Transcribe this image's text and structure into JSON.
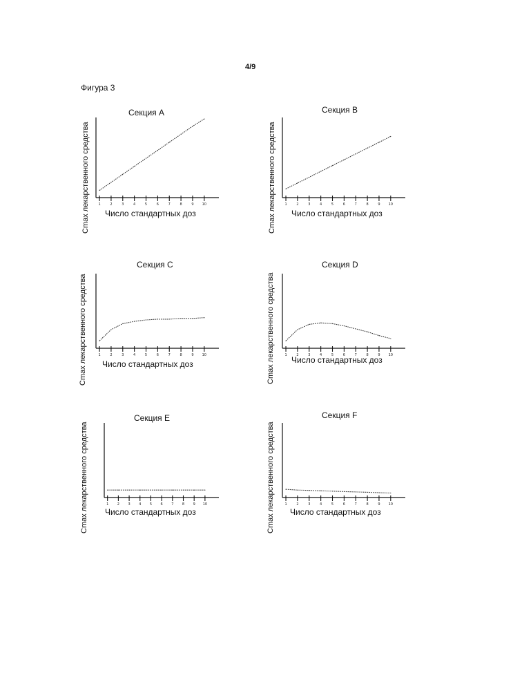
{
  "page": {
    "number": "4/9",
    "figure_label": "Фигура 3"
  },
  "chart_data": [
    {
      "type": "line",
      "title": "Секция A",
      "xlabel": "Число стандартных доз",
      "ylabel": "Cmax лекарственного средства",
      "x": [
        1,
        2,
        3,
        4,
        5,
        6,
        7,
        8,
        9,
        10
      ],
      "x_tick_labels": [
        "1",
        "2",
        "3",
        "4",
        "5",
        "6",
        "7",
        "8",
        "9",
        "10"
      ],
      "series": [
        {
          "name": "Cmax",
          "values": [
            0.1,
            0.21,
            0.32,
            0.43,
            0.54,
            0.65,
            0.76,
            0.87,
            0.98,
            1.08
          ]
        }
      ],
      "xlim": [
        0.7,
        10.9
      ],
      "ylim": [
        0,
        1.1
      ]
    },
    {
      "type": "line",
      "title": "Секция B",
      "xlabel": "Число стандартных доз",
      "ylabel": "Cmax лекарственного средства",
      "x": [
        1,
        2,
        3,
        4,
        5,
        6,
        7,
        8,
        9,
        10
      ],
      "x_tick_labels": [
        "1",
        "2",
        "3",
        "4",
        "5",
        "6",
        "7",
        "8",
        "9",
        "10"
      ],
      "series": [
        {
          "name": "Cmax",
          "values": [
            0.12,
            0.2,
            0.28,
            0.36,
            0.44,
            0.52,
            0.6,
            0.68,
            0.76,
            0.84
          ]
        }
      ],
      "xlim": [
        0.7,
        10.9
      ],
      "ylim": [
        0,
        1.1
      ]
    },
    {
      "type": "line",
      "title": "Секция C",
      "xlabel": "Число стандартных доз",
      "ylabel": "Cmax лекарственного средства",
      "x": [
        1,
        2,
        3,
        4,
        5,
        6,
        7,
        8,
        9,
        10
      ],
      "x_tick_labels": [
        "1",
        "2",
        "3",
        "4",
        "5",
        "6",
        "7",
        "8",
        "9",
        "10"
      ],
      "series": [
        {
          "name": "Cmax",
          "values": [
            0.1,
            0.25,
            0.33,
            0.36,
            0.38,
            0.39,
            0.39,
            0.4,
            0.4,
            0.41
          ]
        }
      ],
      "xlim": [
        0.7,
        10.9
      ],
      "ylim": [
        0,
        1.0
      ]
    },
    {
      "type": "line",
      "title": "Секция D",
      "xlabel": "Число стандартных доз",
      "ylabel": "Cmax лекарственного средства",
      "x": [
        1,
        2,
        3,
        4,
        5,
        6,
        7,
        8,
        9,
        10
      ],
      "x_tick_labels": [
        "1",
        "2",
        "3",
        "4",
        "5",
        "6",
        "7",
        "8",
        "9",
        "10"
      ],
      "series": [
        {
          "name": "Cmax",
          "values": [
            0.1,
            0.25,
            0.32,
            0.34,
            0.33,
            0.3,
            0.26,
            0.22,
            0.17,
            0.13
          ]
        }
      ],
      "xlim": [
        0.7,
        10.9
      ],
      "ylim": [
        0,
        1.0
      ]
    },
    {
      "type": "line",
      "title": "Секция E",
      "xlabel": "Число стандартных доз",
      "ylabel": "Cmax лекарственного средства",
      "x": [
        1,
        2,
        3,
        4,
        5,
        6,
        7,
        8,
        9,
        10
      ],
      "x_tick_labels": [
        "1",
        "2",
        "3",
        "4",
        "5",
        "6",
        "7",
        "8",
        "9",
        "10"
      ],
      "series": [
        {
          "name": "Cmax",
          "values": [
            0.1,
            0.1,
            0.1,
            0.1,
            0.1,
            0.1,
            0.1,
            0.1,
            0.1,
            0.1
          ]
        }
      ],
      "xlim": [
        0.7,
        10.9
      ],
      "ylim": [
        0,
        1.0
      ]
    },
    {
      "type": "line",
      "title": "Секция F",
      "xlabel": "Число стандартных доз",
      "ylabel": "Cmax лекарственного средства",
      "x": [
        1,
        2,
        3,
        4,
        5,
        6,
        7,
        8,
        9,
        10
      ],
      "x_tick_labels": [
        "1",
        "2",
        "3",
        "4",
        "5",
        "6",
        "7",
        "8",
        "9",
        "10"
      ],
      "series": [
        {
          "name": "Cmax",
          "values": [
            0.11,
            0.1,
            0.095,
            0.09,
            0.085,
            0.08,
            0.075,
            0.07,
            0.065,
            0.06
          ]
        }
      ],
      "xlim": [
        0.7,
        10.9
      ],
      "ylim": [
        0,
        1.0
      ]
    }
  ]
}
